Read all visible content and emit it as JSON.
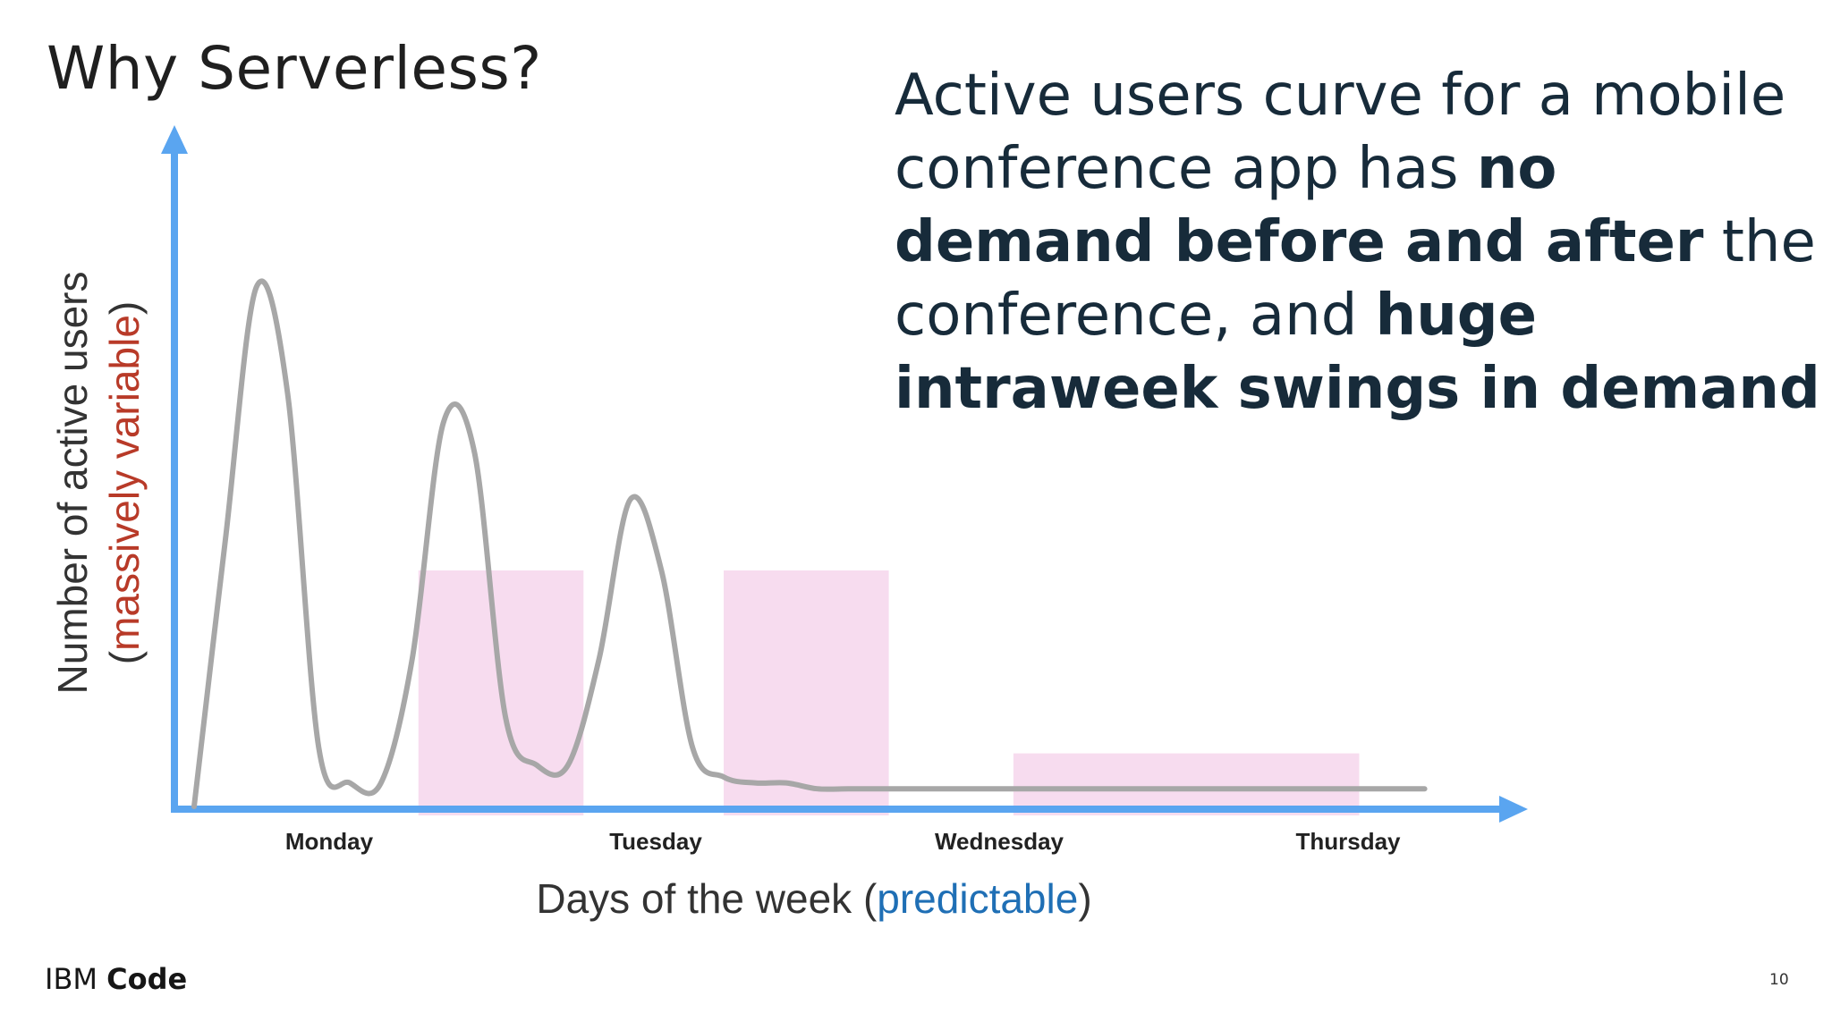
{
  "slide": {
    "title": "Why Serverless?",
    "page_number": "10"
  },
  "body_text": {
    "part1": "Active users curve for a mobile conference app has ",
    "bold1": "no demand before and after",
    "part2": " the conference, and ",
    "bold2": "huge intraweek swings in demand"
  },
  "footer": {
    "brand_light": "IBM",
    "brand_bold": "Code"
  },
  "colors": {
    "axis": "#5aa5f0",
    "curve": "#a7a7a7",
    "shade": "#f7dcef",
    "ylabel_red": "#b83a28",
    "xlabel_blue": "#1f6fb5"
  },
  "chart_data": {
    "type": "line",
    "title": "",
    "xlabel_prefix": "Days of the week (",
    "xlabel_highlight": "predictable",
    "xlabel_suffix": ")",
    "ylabel_main": "Number of active users",
    "ylabel_open": "(",
    "ylabel_highlight": "massively variable",
    "ylabel_close": ")",
    "categories": [
      "Monday",
      "Tuesday",
      "Wednesday",
      "Thursday"
    ],
    "xlim": [
      0,
      4
    ],
    "ylim": [
      0,
      100
    ],
    "series": [
      {
        "name": "Active users",
        "x": [
          0.0,
          0.1,
          0.2,
          0.3,
          0.4,
          0.5,
          0.6,
          0.7,
          0.8,
          0.9,
          1.0,
          1.1,
          1.2,
          1.3,
          1.4,
          1.5,
          1.6,
          1.7,
          1.8,
          1.9,
          2.0,
          2.1,
          2.2,
          2.3,
          2.4,
          2.5,
          2.6,
          2.7,
          2.8,
          2.9,
          3.0,
          3.2,
          3.4,
          3.6,
          3.8,
          3.95
        ],
        "y": [
          0,
          45,
          88,
          70,
          10,
          4,
          4,
          25,
          65,
          60,
          15,
          7,
          7,
          25,
          52,
          40,
          10,
          5,
          4,
          4,
          3,
          3,
          3,
          3,
          3,
          3,
          3,
          3,
          3,
          3,
          3,
          3,
          3,
          3,
          3,
          3
        ]
      }
    ],
    "shaded_periods": [
      {
        "x_start": 0.72,
        "x_end": 1.25,
        "y_max": 40
      },
      {
        "x_start": 1.7,
        "x_end": 2.23,
        "y_max": 40
      },
      {
        "x_start": 2.63,
        "x_end": 3.74,
        "y_max": 9
      }
    ]
  }
}
